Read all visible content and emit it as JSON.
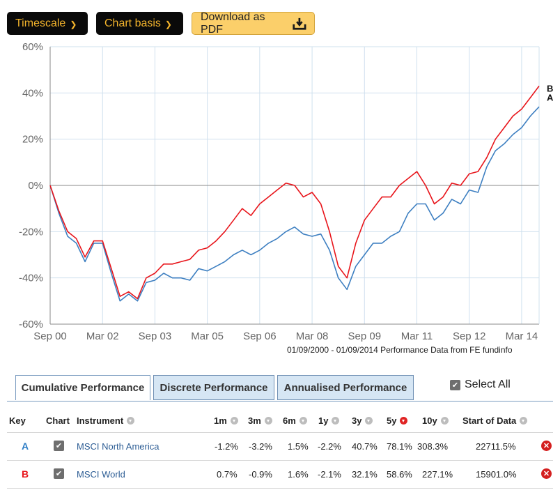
{
  "toolbar": {
    "timescale_label": "Timescale",
    "chart_basis_label": "Chart basis",
    "download_label": "Download as PDF"
  },
  "colors": {
    "series_a": "#3d7fc1",
    "series_b": "#e8141a",
    "button_dark": "#0a0a0a",
    "button_text": "#f5b52c",
    "download_bg": "#fbcf6a"
  },
  "chart_data": {
    "type": "line",
    "ylim": [
      -60,
      60
    ],
    "yticks": [
      "60%",
      "40%",
      "20%",
      "0%",
      "-20%",
      "-40%",
      "-60%"
    ],
    "xticks": [
      "Sep 00",
      "Mar 02",
      "Sep 03",
      "Mar 05",
      "Sep 06",
      "Mar 08",
      "Sep 09",
      "Mar 11",
      "Sep 12",
      "Mar 14"
    ],
    "x": [
      "Sep 00",
      "Dec 00",
      "Mar 01",
      "Jun 01",
      "Sep 01",
      "Dec 01",
      "Mar 02",
      "Jun 02",
      "Sep 02",
      "Dec 02",
      "Mar 03",
      "Jun 03",
      "Sep 03",
      "Dec 03",
      "Mar 04",
      "Jun 04",
      "Sep 04",
      "Dec 04",
      "Mar 05",
      "Jun 05",
      "Sep 05",
      "Dec 05",
      "Mar 06",
      "Jun 06",
      "Sep 06",
      "Dec 06",
      "Mar 07",
      "Jun 07",
      "Sep 07",
      "Dec 07",
      "Mar 08",
      "Jun 08",
      "Sep 08",
      "Dec 08",
      "Mar 09",
      "Jun 09",
      "Sep 09",
      "Dec 09",
      "Mar 10",
      "Jun 10",
      "Sep 10",
      "Dec 10",
      "Mar 11",
      "Jun 11",
      "Sep 11",
      "Dec 11",
      "Mar 12",
      "Jun 12",
      "Sep 12",
      "Dec 12",
      "Mar 13",
      "Jun 13",
      "Sep 13",
      "Dec 13",
      "Mar 14",
      "Jun 14",
      "Sep 14"
    ],
    "series": [
      {
        "key": "A",
        "name": "MSCI North America",
        "values": [
          0,
          -12,
          -22,
          -25,
          -33,
          -25,
          -25,
          -38,
          -50,
          -47,
          -50,
          -42,
          -41,
          -38,
          -40,
          -40,
          -41,
          -36,
          -37,
          -35,
          -33,
          -30,
          -28,
          -30,
          -28,
          -25,
          -23,
          -20,
          -18,
          -21,
          -22,
          -21,
          -28,
          -40,
          -45,
          -35,
          -30,
          -25,
          -25,
          -22,
          -20,
          -12,
          -8,
          -8,
          -15,
          -12,
          -6,
          -8,
          -2,
          -3,
          8,
          15,
          18,
          22,
          25,
          30,
          34
        ]
      },
      {
        "key": "B",
        "name": "MSCI World",
        "values": [
          0,
          -11,
          -20,
          -23,
          -31,
          -24,
          -24,
          -36,
          -48,
          -46,
          -49,
          -40,
          -38,
          -34,
          -34,
          -33,
          -32,
          -28,
          -27,
          -24,
          -20,
          -15,
          -10,
          -13,
          -8,
          -5,
          -2,
          1,
          0,
          -5,
          -3,
          -8,
          -20,
          -35,
          -40,
          -25,
          -15,
          -10,
          -5,
          -5,
          0,
          3,
          6,
          0,
          -8,
          -5,
          1,
          0,
          5,
          6,
          12,
          20,
          25,
          30,
          33,
          38,
          43
        ]
      }
    ],
    "end_labels": [
      "B",
      "A"
    ],
    "footnote": "01/09/2000 - 01/09/2014 Performance Data from FE fundinfo"
  },
  "tabs": [
    {
      "label": "Cumulative Performance"
    },
    {
      "label": "Discrete Performance"
    },
    {
      "label": "Annualised Performance"
    }
  ],
  "select_all_label": "Select All",
  "table": {
    "headers": {
      "key": "Key",
      "chart": "Chart",
      "instrument": "Instrument",
      "m1": "1m",
      "m3": "3m",
      "m6": "6m",
      "y1": "1y",
      "y3": "3y",
      "y5": "5y",
      "y10": "10y",
      "start": "Start of Data"
    },
    "rows": [
      {
        "key": "A",
        "key_color": "#2e7ec6",
        "instrument": "MSCI North America",
        "m1": "-1.2%",
        "m3": "-3.2%",
        "m6": "1.5%",
        "y1": "-2.2%",
        "y3": "40.7%",
        "y5": "78.1%",
        "y10": "308.3%",
        "start": "22711.5%"
      },
      {
        "key": "B",
        "key_color": "#e8141a",
        "instrument": "MSCI World",
        "m1": "0.7%",
        "m3": "-0.9%",
        "m6": "1.6%",
        "y1": "-2.1%",
        "y3": "32.1%",
        "y5": "58.6%",
        "y10": "227.1%",
        "start": "15901.0%"
      }
    ]
  }
}
